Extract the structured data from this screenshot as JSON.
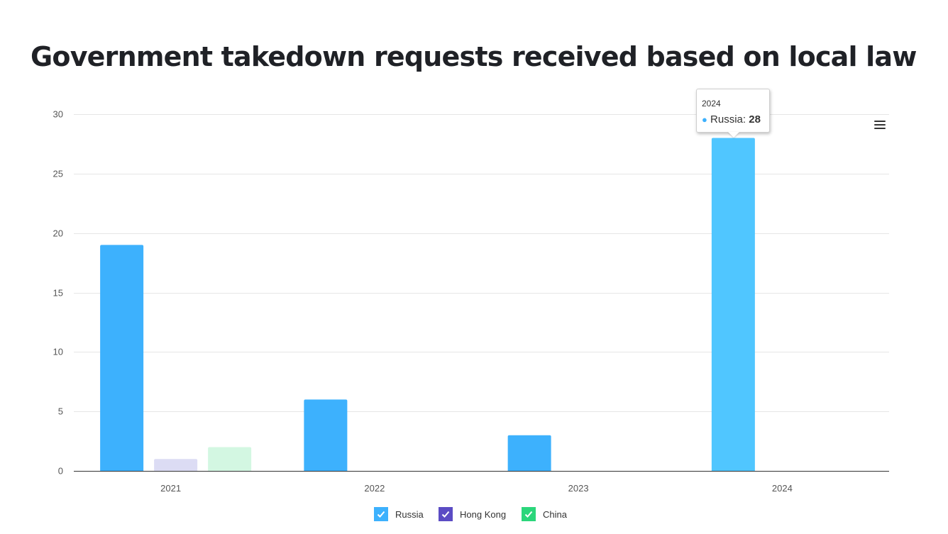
{
  "title": "Government takedown requests received based on local law",
  "chart_data": {
    "type": "bar",
    "title": "Government takedown requests received based on local law",
    "xlabel": "",
    "ylabel": "",
    "categories": [
      "2021",
      "2022",
      "2023",
      "2024"
    ],
    "ylim": [
      0,
      30
    ],
    "yticks": [
      "0",
      "5",
      "10",
      "15",
      "20",
      "25",
      "30"
    ],
    "grid": true,
    "legend_position": "bottom",
    "series": [
      {
        "name": "Russia",
        "values": [
          19,
          6,
          3,
          28
        ],
        "color": "#3db1fd"
      },
      {
        "name": "Hong Kong",
        "values": [
          1,
          0,
          0,
          0
        ],
        "color": "#5b4cc4",
        "dimmed_color": "#dcdcf4"
      },
      {
        "name": "China",
        "values": [
          2,
          0,
          0,
          0
        ],
        "color": "#2bd67b",
        "dimmed_color": "#d3f7e2"
      }
    ],
    "highlighted_bar_color": "#50c6ff"
  },
  "tooltip": {
    "header": "2024",
    "series_name": "Russia",
    "separator": ":",
    "value": "28"
  },
  "menu": {
    "icon": "hamburger-menu-icon"
  },
  "legend": {
    "items": [
      {
        "label": "Russia",
        "color": "#3db1fd",
        "icon": "check-icon"
      },
      {
        "label": "Hong Kong",
        "color": "#5b4cc4",
        "icon": "check-icon"
      },
      {
        "label": "China",
        "color": "#2bd67b",
        "icon": "check-icon"
      }
    ]
  }
}
